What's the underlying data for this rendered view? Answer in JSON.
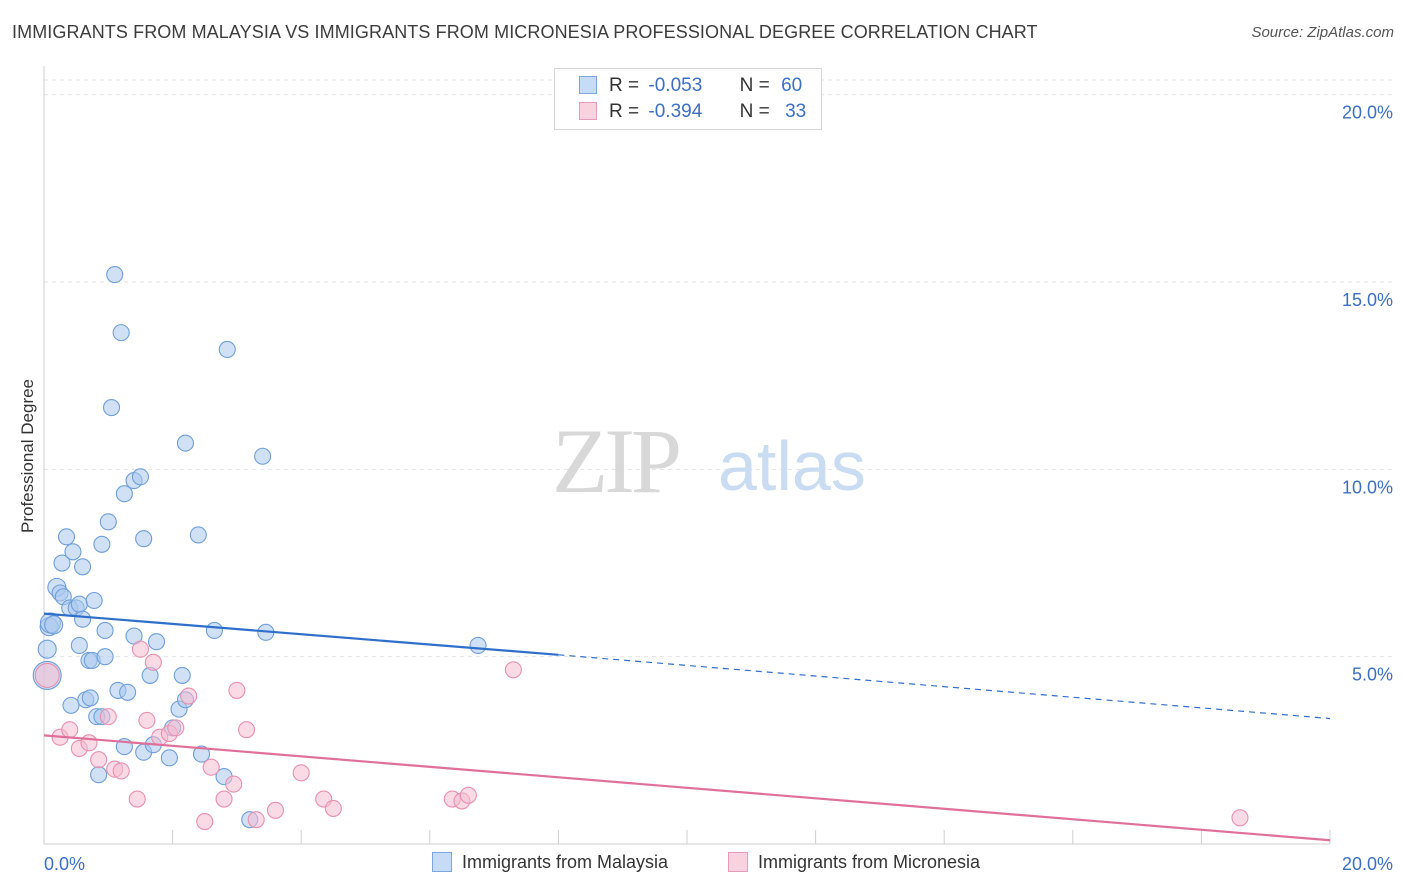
{
  "title": "IMMIGRANTS FROM MALAYSIA VS IMMIGRANTS FROM MICRONESIA PROFESSIONAL DEGREE CORRELATION CHART",
  "source": "Source: ZipAtlas.com",
  "watermark": {
    "zip": "ZIP",
    "atlas": "atlas"
  },
  "legend_top": {
    "rows": [
      {
        "r_label": "R =",
        "r_value": "-0.053",
        "n_label": "N =",
        "n_value": "60"
      },
      {
        "r_label": "R =",
        "r_value": "-0.394",
        "n_label": "N =",
        "n_value": "33"
      }
    ]
  },
  "legend_bottom": {
    "series1": "Immigrants from Malaysia",
    "series2": "Immigrants from Micronesia"
  },
  "colors": {
    "series1_fill": "#a9c8ee",
    "series1_stroke": "#6f9fd8",
    "series1_line": "#2f6fcc",
    "series2_fill": "#f6bcd0",
    "series2_stroke": "#e890b0",
    "series2_line": "#e0709a",
    "tick_text": "#3b6fc4",
    "grid": "#e2e2e2"
  },
  "chart_data": {
    "type": "scatter",
    "title": "IMMIGRANTS FROM MALAYSIA VS IMMIGRANTS FROM MICRONESIA PROFESSIONAL DEGREE CORRELATION CHART",
    "xlabel": "",
    "ylabel": "Professional Degree",
    "xlim": [
      0,
      20
    ],
    "ylim": [
      0,
      20.5
    ],
    "x_tick_labels": [
      {
        "value": 0,
        "label": "0.0%"
      },
      {
        "value": 20,
        "label": "20.0%"
      }
    ],
    "y_tick_labels": [
      {
        "value": 5,
        "label": "5.0%"
      },
      {
        "value": 10,
        "label": "10.0%"
      },
      {
        "value": 15,
        "label": "15.0%"
      },
      {
        "value": 20,
        "label": "20.0%"
      }
    ],
    "grid": true,
    "series": [
      {
        "name": "Immigrants from Malaysia",
        "R": -0.053,
        "N": 60,
        "trend": {
          "x_start": 0,
          "y_start": 6.15,
          "x_end": 8.0,
          "y_end": 5.05,
          "dashed_to_x": 20,
          "dashed_to_y": 3.35
        },
        "points": [
          [
            0.05,
            4.5,
            14
          ],
          [
            0.05,
            5.2,
            9
          ],
          [
            0.08,
            5.8,
            9
          ],
          [
            0.1,
            5.9,
            10
          ],
          [
            0.15,
            5.85,
            9
          ],
          [
            0.2,
            6.85,
            9
          ],
          [
            0.25,
            6.7,
            8
          ],
          [
            0.28,
            7.5,
            8
          ],
          [
            0.3,
            6.6,
            8
          ],
          [
            0.35,
            8.2,
            8
          ],
          [
            0.4,
            6.3,
            8
          ],
          [
            0.42,
            3.7,
            8
          ],
          [
            0.45,
            7.8,
            8
          ],
          [
            0.5,
            6.3,
            8
          ],
          [
            0.55,
            6.4,
            8
          ],
          [
            0.55,
            5.3,
            8
          ],
          [
            0.6,
            7.4,
            8
          ],
          [
            0.6,
            6.0,
            8
          ],
          [
            0.65,
            3.85,
            8
          ],
          [
            0.7,
            4.9,
            8
          ],
          [
            0.72,
            3.9,
            8
          ],
          [
            0.75,
            4.9,
            8
          ],
          [
            0.78,
            6.5,
            8
          ],
          [
            0.82,
            3.4,
            8
          ],
          [
            0.85,
            1.85,
            8
          ],
          [
            0.9,
            3.4,
            8
          ],
          [
            0.9,
            8.0,
            8
          ],
          [
            0.95,
            5.7,
            8
          ],
          [
            0.95,
            5.0,
            8
          ],
          [
            1.0,
            8.6,
            8
          ],
          [
            1.05,
            11.65,
            8
          ],
          [
            1.1,
            15.2,
            8
          ],
          [
            1.15,
            4.1,
            8
          ],
          [
            1.2,
            13.65,
            8
          ],
          [
            1.25,
            9.35,
            8
          ],
          [
            1.25,
            2.6,
            8
          ],
          [
            1.3,
            4.05,
            8
          ],
          [
            1.4,
            9.7,
            8
          ],
          [
            1.4,
            5.55,
            8
          ],
          [
            1.5,
            9.8,
            8
          ],
          [
            1.55,
            8.15,
            8
          ],
          [
            1.55,
            2.45,
            8
          ],
          [
            1.65,
            4.5,
            8
          ],
          [
            1.7,
            2.65,
            8
          ],
          [
            1.75,
            5.4,
            8
          ],
          [
            1.95,
            2.3,
            8
          ],
          [
            2.0,
            3.1,
            8
          ],
          [
            2.1,
            3.6,
            8
          ],
          [
            2.15,
            4.5,
            8
          ],
          [
            2.2,
            3.85,
            8
          ],
          [
            2.2,
            10.7,
            8
          ],
          [
            2.4,
            8.25,
            8
          ],
          [
            2.45,
            2.4,
            8
          ],
          [
            2.65,
            5.7,
            8
          ],
          [
            2.8,
            1.8,
            8
          ],
          [
            2.85,
            13.2,
            8
          ],
          [
            3.2,
            0.65,
            8
          ],
          [
            3.4,
            10.35,
            8
          ],
          [
            3.45,
            5.65,
            8
          ],
          [
            6.75,
            5.3,
            8
          ]
        ]
      },
      {
        "name": "Immigrants from Micronesia",
        "R": -0.394,
        "N": 33,
        "trend": {
          "x_start": 0,
          "y_start": 2.9,
          "x_end": 20,
          "y_end": 0.1
        },
        "points": [
          [
            0.05,
            4.5,
            12
          ],
          [
            0.25,
            2.85,
            8
          ],
          [
            0.4,
            3.05,
            8
          ],
          [
            0.55,
            2.55,
            8
          ],
          [
            0.7,
            2.7,
            8
          ],
          [
            0.85,
            2.25,
            8
          ],
          [
            1.0,
            3.4,
            8
          ],
          [
            1.1,
            2.0,
            8
          ],
          [
            1.2,
            1.95,
            8
          ],
          [
            1.45,
            1.2,
            8
          ],
          [
            1.5,
            5.2,
            8
          ],
          [
            1.6,
            3.3,
            8
          ],
          [
            1.7,
            4.85,
            8
          ],
          [
            1.8,
            2.85,
            8
          ],
          [
            1.95,
            2.95,
            8
          ],
          [
            2.05,
            3.1,
            8
          ],
          [
            2.25,
            3.95,
            8
          ],
          [
            2.5,
            0.6,
            8
          ],
          [
            2.6,
            2.05,
            8
          ],
          [
            2.8,
            1.2,
            8
          ],
          [
            2.95,
            1.6,
            8
          ],
          [
            3.0,
            4.1,
            8
          ],
          [
            3.15,
            3.05,
            8
          ],
          [
            3.3,
            0.65,
            8
          ],
          [
            3.6,
            0.9,
            8
          ],
          [
            4.0,
            1.9,
            8
          ],
          [
            4.35,
            1.2,
            8
          ],
          [
            4.5,
            0.95,
            8
          ],
          [
            6.35,
            1.2,
            8
          ],
          [
            6.5,
            1.15,
            8
          ],
          [
            6.6,
            1.3,
            8
          ],
          [
            7.3,
            4.65,
            8
          ],
          [
            18.6,
            0.7,
            8
          ]
        ]
      }
    ]
  }
}
